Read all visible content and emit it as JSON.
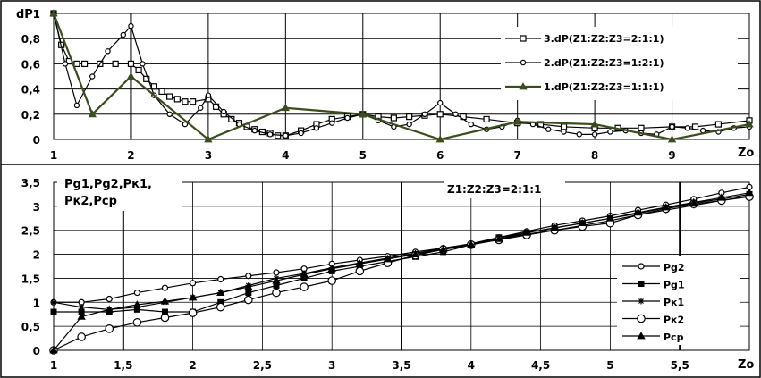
{
  "chart_data": [
    {
      "type": "line",
      "ylabel": "dP",
      "xlabel": "Zo",
      "xlim": [
        1,
        10
      ],
      "ylim": [
        0,
        1
      ],
      "x_ticks": [
        "1",
        "2",
        "3",
        "4",
        "5",
        "6",
        "7",
        "8",
        "9"
      ],
      "y_ticks": [
        "0",
        "0,2",
        "0,4",
        "0,6",
        "0,8",
        "1"
      ],
      "grid": "major gridlines",
      "legend_position": "top-right",
      "series": [
        {
          "name": "3.dP(Z1:Z2:Z3=2:1:1)",
          "color": "#000000",
          "marker": "square",
          "x": [
            1,
            1.1,
            1.2,
            1.3,
            1.4,
            1.6,
            1.8,
            2,
            2.1,
            2.2,
            2.3,
            2.4,
            2.5,
            2.6,
            2.7,
            2.8,
            3,
            3.1,
            3.2,
            3.3,
            3.4,
            3.5,
            3.6,
            3.7,
            3.8,
            3.9,
            4,
            4.2,
            4.4,
            4.6,
            4.8,
            5,
            5.2,
            5.4,
            5.6,
            5.8,
            6,
            6.3,
            6.6,
            7,
            7.3,
            7.6,
            8,
            8.3,
            8.6,
            9,
            9.3,
            9.6,
            10
          ],
          "y": [
            1,
            0.75,
            0.62,
            0.6,
            0.6,
            0.6,
            0.6,
            0.6,
            0.55,
            0.48,
            0.42,
            0.38,
            0.34,
            0.32,
            0.3,
            0.3,
            0.32,
            0.26,
            0.2,
            0.16,
            0.13,
            0.1,
            0.08,
            0.06,
            0.05,
            0.03,
            0.03,
            0.07,
            0.12,
            0.16,
            0.18,
            0.2,
            0.18,
            0.17,
            0.18,
            0.19,
            0.2,
            0.18,
            0.16,
            0.13,
            0.12,
            0.1,
            0.09,
            0.09,
            0.09,
            0.1,
            0.1,
            0.12,
            0.15
          ]
        },
        {
          "name": "2.dP(Z1:Z2:Z3=1:2:1)",
          "color": "#000000",
          "marker": "circle",
          "x": [
            1,
            1.15,
            1.3,
            1.5,
            1.7,
            1.9,
            2,
            2.15,
            2.3,
            2.5,
            2.7,
            2.9,
            3,
            3.2,
            3.4,
            3.6,
            3.8,
            4,
            4.2,
            4.4,
            4.6,
            4.8,
            5,
            5.2,
            5.4,
            5.6,
            5.8,
            6,
            6.2,
            6.4,
            6.6,
            6.8,
            7,
            7.2,
            7.4,
            7.6,
            7.8,
            8,
            8.2,
            8.4,
            8.6,
            8.8,
            9,
            9.2,
            9.4,
            9.6,
            9.8,
            10
          ],
          "y": [
            1,
            0.6,
            0.27,
            0.5,
            0.7,
            0.83,
            0.9,
            0.6,
            0.35,
            0.2,
            0.12,
            0.25,
            0.35,
            0.22,
            0.12,
            0.07,
            0.04,
            0.03,
            0.05,
            0.09,
            0.13,
            0.17,
            0.2,
            0.15,
            0.1,
            0.12,
            0.2,
            0.29,
            0.2,
            0.12,
            0.08,
            0.1,
            0.15,
            0.12,
            0.08,
            0.06,
            0.04,
            0.04,
            0.06,
            0.07,
            0.05,
            0.04,
            0.1,
            0.09,
            0.07,
            0.06,
            0.09,
            0.1
          ]
        },
        {
          "name": "1.dP(Z1:Z2:Z3=1:1:1)",
          "color": "#3a4d1c",
          "marker": "triangle",
          "x": [
            1,
            1.5,
            2,
            3,
            4,
            5,
            6,
            7,
            8,
            9,
            10
          ],
          "y": [
            1,
            0.2,
            0.5,
            0,
            0.25,
            0.2,
            0,
            0.14,
            0.12,
            0,
            0.12
          ]
        }
      ]
    },
    {
      "type": "line",
      "ylabel": "Pg1,Pg2,Pк1, Pк2,Pср",
      "xlabel": "Zo",
      "annotation": "Z1:Z2:Z3=2:1:1",
      "xlim": [
        1,
        6
      ],
      "ylim": [
        0,
        3.5
      ],
      "x_ticks": [
        "1",
        "1,5",
        "2",
        "2,5",
        "3",
        "3,5",
        "4",
        "4,5",
        "5",
        "5,5",
        "Zo"
      ],
      "y_ticks": [
        "0",
        "0,5",
        "1",
        "1,5",
        "2",
        "2,5",
        "3",
        "3,5"
      ],
      "grid": "major gridlines",
      "legend_position": "right",
      "series": [
        {
          "name": "Pg2",
          "color": "#000000",
          "marker": "hollow-circle",
          "x": [
            1,
            1.2,
            1.4,
            1.6,
            1.8,
            2,
            2.2,
            2.4,
            2.6,
            2.8,
            3,
            3.2,
            3.4,
            3.6,
            3.8,
            4,
            4.2,
            4.4,
            4.6,
            4.8,
            5,
            5.2,
            5.4,
            5.6,
            5.8,
            6
          ],
          "y": [
            1,
            1,
            1.07,
            1.2,
            1.3,
            1.4,
            1.48,
            1.55,
            1.62,
            1.7,
            1.8,
            1.88,
            1.96,
            2.05,
            2.13,
            2.22,
            2.35,
            2.48,
            2.6,
            2.7,
            2.8,
            2.92,
            3.03,
            3.15,
            3.28,
            3.4
          ]
        },
        {
          "name": "Pg1",
          "color": "#000000",
          "marker": "filled-square",
          "x": [
            1,
            1.2,
            1.4,
            1.6,
            1.8,
            2,
            2.2,
            2.4,
            2.6,
            2.8,
            3,
            3.2,
            3.4,
            3.6,
            3.8,
            4,
            4.2,
            4.4,
            4.6,
            4.8,
            5,
            5.2,
            5.4,
            5.6,
            5.8,
            6
          ],
          "y": [
            0.8,
            0.8,
            0.8,
            0.85,
            0.8,
            0.8,
            1,
            1.2,
            1.35,
            1.5,
            1.65,
            1.75,
            1.85,
            1.95,
            2.05,
            2.2,
            2.35,
            2.45,
            2.55,
            2.65,
            2.75,
            2.85,
            2.97,
            3.07,
            3.15,
            3.25
          ]
        },
        {
          "name": "Pк1",
          "color": "#000000",
          "marker": "star",
          "x": [
            1,
            1.2,
            1.4,
            1.6,
            1.8,
            2,
            2.2,
            2.4,
            2.6,
            2.8,
            3,
            3.2,
            3.4,
            3.6,
            3.8,
            4,
            4.2,
            4.4,
            4.6,
            4.8,
            5,
            5.2,
            5.4,
            5.6,
            5.8,
            6
          ],
          "y": [
            1,
            0.9,
            0.85,
            0.9,
            1,
            1.1,
            1.2,
            1.35,
            1.5,
            1.6,
            1.72,
            1.82,
            1.92,
            2.02,
            2.12,
            2.2,
            2.32,
            2.42,
            2.5,
            2.6,
            2.7,
            2.82,
            2.92,
            3.02,
            3.12,
            3.22
          ]
        },
        {
          "name": "Pк2",
          "color": "#000000",
          "marker": "large-hollow-circle",
          "x": [
            1,
            1.2,
            1.4,
            1.6,
            1.8,
            2,
            2.2,
            2.4,
            2.6,
            2.8,
            3,
            3.2,
            3.4,
            3.6,
            3.8,
            4,
            4.2,
            4.4,
            4.6,
            4.8,
            5,
            5.2,
            5.4,
            5.6,
            5.8,
            6
          ],
          "y": [
            0,
            0.28,
            0.45,
            0.58,
            0.68,
            0.78,
            0.9,
            1.05,
            1.2,
            1.32,
            1.45,
            1.65,
            1.82,
            1.98,
            2.1,
            2.2,
            2.3,
            2.4,
            2.5,
            2.58,
            2.65,
            2.82,
            2.95,
            3.05,
            3.12,
            3.2
          ]
        },
        {
          "name": "Pср",
          "color": "#000000",
          "marker": "filled-triangle",
          "x": [
            1,
            1.2,
            1.4,
            1.6,
            1.8,
            2,
            2.2,
            2.4,
            2.6,
            2.8,
            3,
            3.2,
            3.4,
            3.6,
            3.8,
            4,
            4.2,
            4.4,
            4.6,
            4.8,
            5,
            5.2,
            5.4,
            5.6,
            5.8,
            6
          ],
          "y": [
            0,
            0.7,
            0.85,
            0.95,
            1.02,
            1.1,
            1.2,
            1.32,
            1.45,
            1.58,
            1.7,
            1.8,
            1.9,
            2,
            2.1,
            2.2,
            2.32,
            2.45,
            2.55,
            2.65,
            2.75,
            2.87,
            2.98,
            3.08,
            3.18,
            3.28
          ]
        }
      ]
    }
  ]
}
